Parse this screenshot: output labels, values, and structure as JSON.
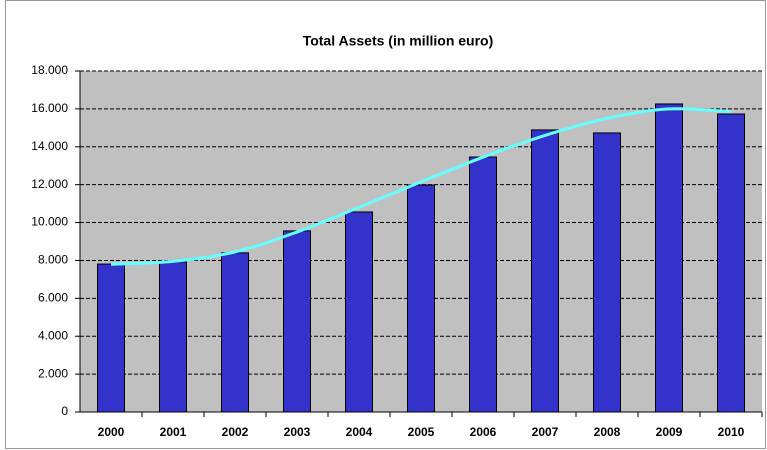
{
  "chart_data": {
    "type": "bar",
    "title": "Total  Assets  (in  million  euro)",
    "categories": [
      "2000",
      "2001",
      "2002",
      "2003",
      "2004",
      "2005",
      "2006",
      "2007",
      "2008",
      "2009",
      "2010"
    ],
    "values": [
      7810,
      7920,
      8400,
      9560,
      10560,
      11980,
      13460,
      14890,
      14730,
      16260,
      15730
    ],
    "color": "#3333cc",
    "trendline": {
      "color": "#66ffff",
      "values": [
        7800,
        7950,
        8450,
        9500,
        10800,
        12150,
        13450,
        14600,
        15500,
        16000,
        15850
      ]
    },
    "ylim": [
      0,
      18000
    ],
    "yticks": [
      0,
      {
        "value": 2000,
        "label": "2.000"
      },
      {
        "value": 4000,
        "label": "4.000"
      },
      {
        "value": 6000,
        "label": "6.000"
      },
      {
        "value": 8000,
        "label": "8.000"
      },
      {
        "value": 10000,
        "label": "10.000"
      },
      {
        "value": 12000,
        "label": "12.000"
      },
      {
        "value": 14000,
        "label": "14.000"
      },
      {
        "value": 16000,
        "label": "16.000"
      },
      {
        "value": 18000,
        "label": "18.000"
      }
    ],
    "grid": true
  }
}
